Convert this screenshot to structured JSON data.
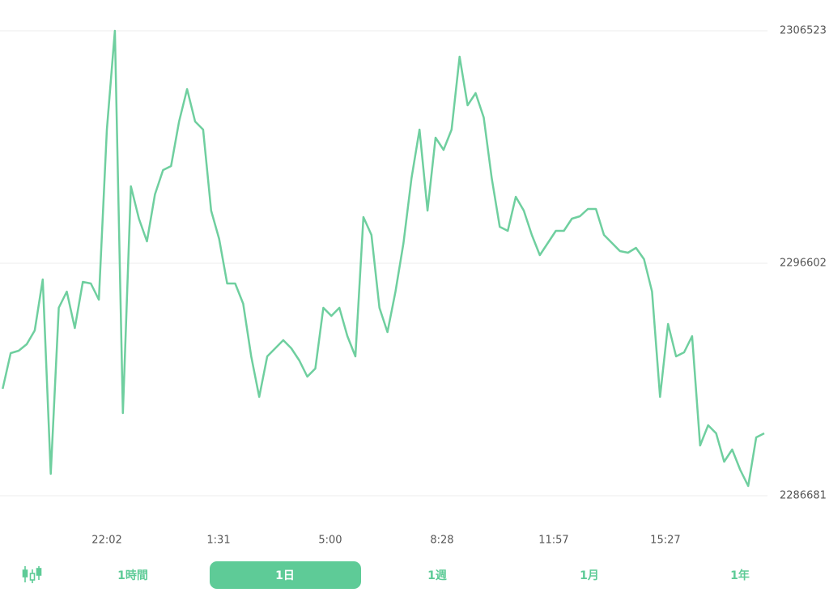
{
  "chart_data": {
    "type": "line",
    "x": [
      -195,
      -180,
      -165,
      -150,
      -135,
      -120,
      -105,
      -90,
      -75,
      -60,
      -45,
      -30,
      -15,
      0,
      15,
      30,
      45,
      60,
      75,
      90,
      105,
      120,
      135,
      150,
      165,
      180,
      195,
      210,
      225,
      240,
      255,
      270,
      285,
      300,
      315,
      330,
      345,
      360,
      375,
      390,
      405,
      420,
      435,
      450,
      465,
      480,
      495,
      510,
      525,
      540,
      555,
      570,
      585,
      600,
      615,
      630,
      645,
      660,
      675,
      690,
      705,
      720,
      735,
      750,
      765,
      780,
      795,
      810,
      825,
      840,
      855,
      870,
      885,
      900,
      915,
      930,
      945,
      960,
      975,
      990,
      1005,
      1020,
      1035,
      1050,
      1065,
      1080,
      1095,
      1110,
      1125,
      1140,
      1155,
      1170,
      1185,
      1200,
      1215,
      1230
    ],
    "series": [
      {
        "name": null,
        "color": "#6fcf9f",
        "values": [
          2291244,
          2292765,
          2292869,
          2293145,
          2293733,
          2295911,
          2287614,
          2294701,
          2295392,
          2293837,
          2295807,
          2295738,
          2295046,
          2302306,
          2306523,
          2290207,
          2299886,
          2298503,
          2297535,
          2299540,
          2300577,
          2300750,
          2302651,
          2304034,
          2302651,
          2302306,
          2298849,
          2297639,
          2295738,
          2295738,
          2294874,
          2292627,
          2290898,
          2292627,
          2292972,
          2293318,
          2292972,
          2292454,
          2291762,
          2292108,
          2294701,
          2294355,
          2294701,
          2293491,
          2292627,
          2298572,
          2297812,
          2294701,
          2293664,
          2295392,
          2297466,
          2300232,
          2302306,
          2298849,
          2301960,
          2301442,
          2302306,
          2305417,
          2303343,
          2303861,
          2302824,
          2300232,
          2298158,
          2297985,
          2299437,
          2298849,
          2297812,
          2296948,
          2297466,
          2297985,
          2297985,
          2298503,
          2298607,
          2298918,
          2298918,
          2297812,
          2297466,
          2297121,
          2297051,
          2297259,
          2296775,
          2295392,
          2290898,
          2294009,
          2292627,
          2292800,
          2293491,
          2288824,
          2289688,
          2289343,
          2288133,
          2288651,
          2287787,
          2287096,
          2289170,
          2289343
        ]
      }
    ],
    "xlim": [
      -200,
      1236
    ],
    "xticks": [
      {
        "value": 0,
        "label": "22:02"
      },
      {
        "value": 209,
        "label": "1:31"
      },
      {
        "value": 418,
        "label": "5:00"
      },
      {
        "value": 627,
        "label": "8:28"
      },
      {
        "value": 836,
        "label": "11:57"
      },
      {
        "value": 1045,
        "label": "15:27"
      }
    ],
    "ylim": [
      2286681,
      2306523
    ],
    "yticks": [
      2306523,
      2296602,
      2286681
    ],
    "grid": true
  },
  "tabs": {
    "items": [
      "1時間",
      "1日",
      "1週",
      "1月",
      "1年"
    ],
    "selected": 1
  }
}
